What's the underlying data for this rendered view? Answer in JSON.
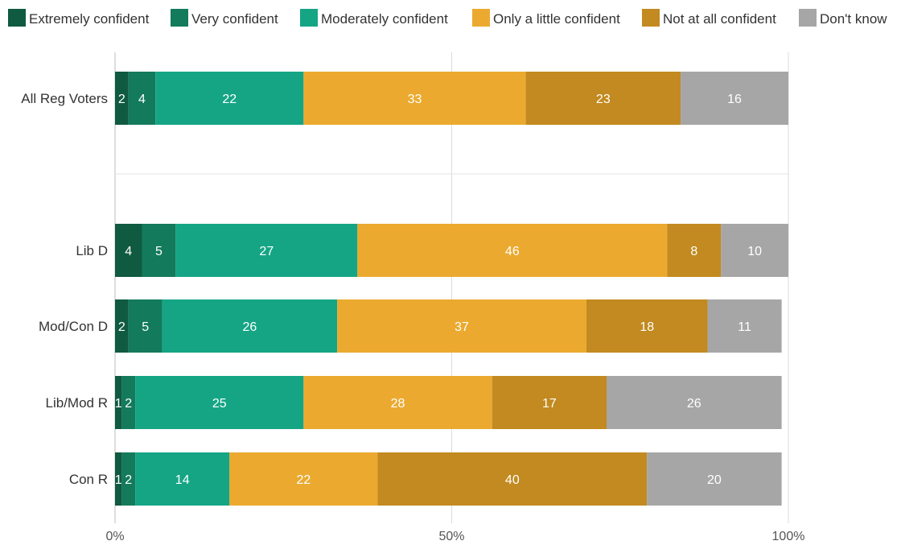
{
  "chart_data": {
    "type": "bar",
    "orientation": "horizontal",
    "stacked": true,
    "title": "",
    "xlabel": "",
    "ylabel": "",
    "xlim": [
      0,
      100
    ],
    "x_ticks": [
      "0%",
      "50%",
      "100%"
    ],
    "x_tick_values": [
      0,
      50,
      100
    ],
    "grid": true,
    "legend_position": "top",
    "categories": [
      "All Reg Voters",
      "Lib D",
      "Mod/Con D",
      "Lib/Mod R",
      "Con R"
    ],
    "series": [
      {
        "name": "Extremely confident",
        "color": "#0f5a40",
        "values": [
          2,
          4,
          2,
          1,
          1
        ]
      },
      {
        "name": "Very confident",
        "color": "#137a5c",
        "values": [
          4,
          5,
          5,
          2,
          2
        ]
      },
      {
        "name": "Moderately confident",
        "color": "#15a585",
        "values": [
          22,
          27,
          26,
          25,
          14
        ]
      },
      {
        "name": "Only a little confident",
        "color": "#ebaa2f",
        "values": [
          33,
          46,
          37,
          28,
          22
        ]
      },
      {
        "name": "Not at all confident",
        "color": "#c28a20",
        "values": [
          23,
          8,
          18,
          17,
          40
        ]
      },
      {
        "name": "Don't know",
        "color": "#a6a6a6",
        "values": [
          16,
          10,
          11,
          26,
          20
        ]
      }
    ]
  }
}
